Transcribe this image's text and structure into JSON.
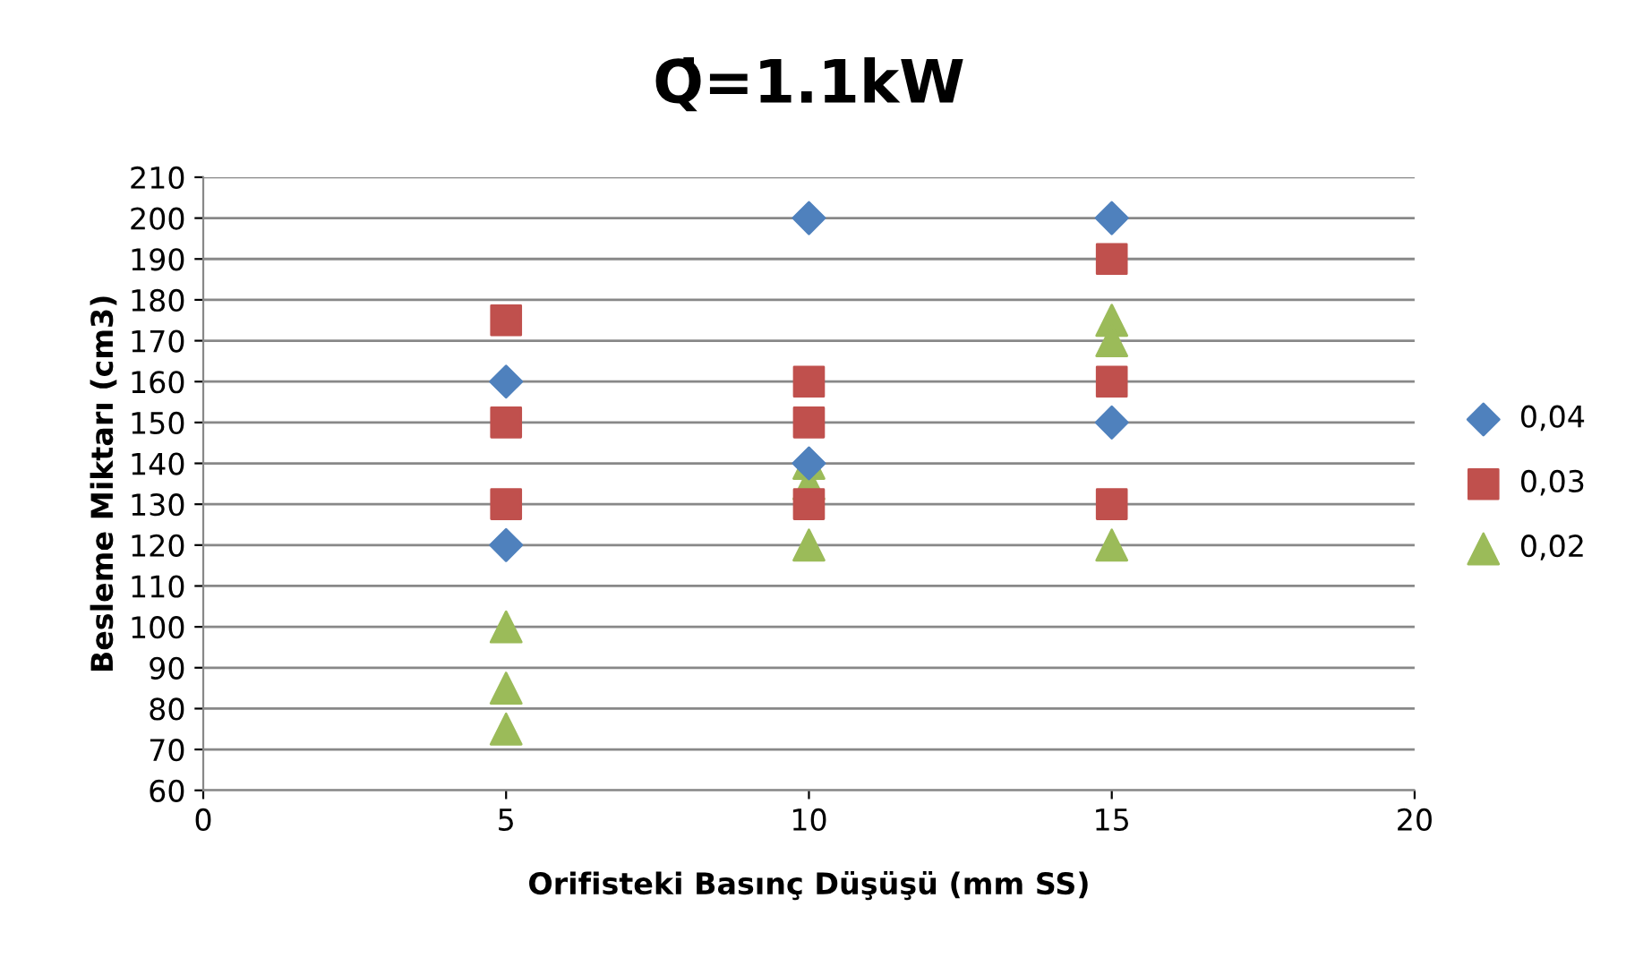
{
  "chart_data": {
    "type": "scatter",
    "title": "Q̇=1.1kW",
    "xlabel": "Orifisteki Basınç Düşüşü (mm SS)",
    "ylabel": "Besleme Miktarı (cm3)",
    "series": [
      {
        "name": "0,04",
        "color": "#4f81bd",
        "marker": "diamond",
        "x": [
          5,
          5,
          10,
          10,
          15,
          15
        ],
        "values": [
          160,
          120,
          200,
          140,
          200,
          150
        ]
      },
      {
        "name": "0,03",
        "color": "#c0504d",
        "marker": "square",
        "x": [
          5,
          5,
          5,
          10,
          10,
          10,
          15,
          15,
          15
        ],
        "values": [
          175,
          150,
          130,
          160,
          150,
          130,
          190,
          160,
          130
        ]
      },
      {
        "name": "0,02",
        "color": "#9bbb59",
        "marker": "triangle",
        "x": [
          5,
          5,
          5,
          10,
          10,
          10,
          15,
          15,
          15
        ],
        "values": [
          100,
          85,
          75,
          140,
          135,
          120,
          175,
          170,
          120
        ]
      }
    ],
    "xlim": [
      0,
      20
    ],
    "xticks": [
      0,
      5,
      10,
      15,
      20
    ],
    "ylim": [
      60,
      210
    ],
    "yticks": [
      60,
      70,
      80,
      90,
      100,
      110,
      120,
      130,
      140,
      150,
      160,
      170,
      180,
      190,
      200,
      210
    ],
    "grid": "y",
    "legend": "right"
  }
}
